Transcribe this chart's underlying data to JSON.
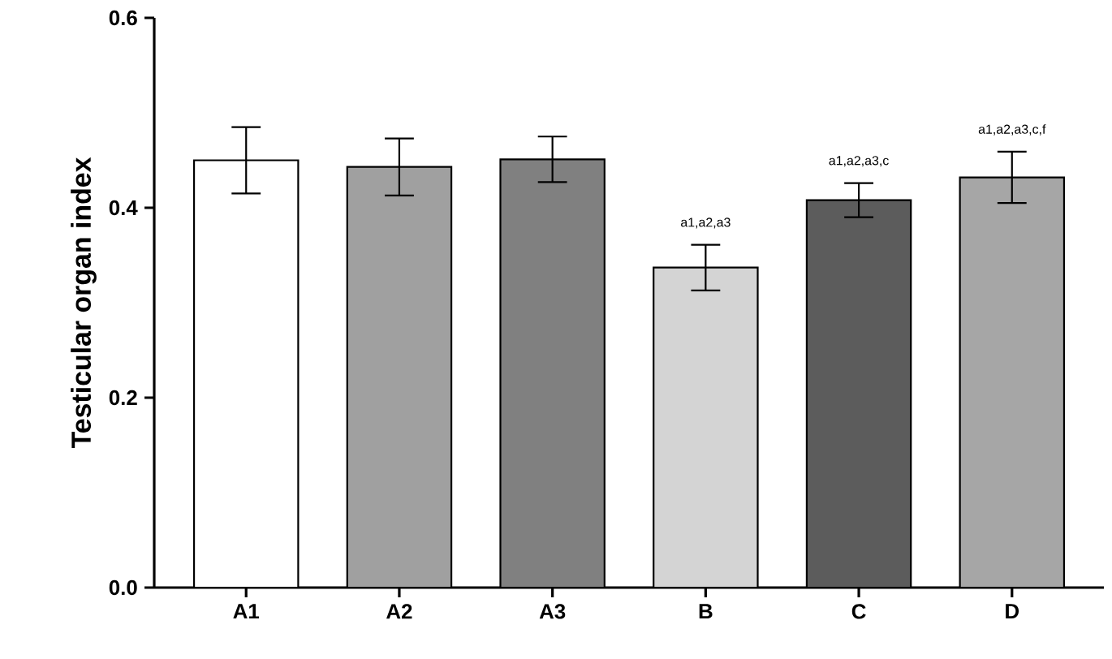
{
  "chart_data": {
    "type": "bar",
    "ylabel": "Testicular organ index",
    "categories": [
      "A1",
      "A2",
      "A3",
      "B",
      "C",
      "D"
    ],
    "values": [
      0.45,
      0.443,
      0.451,
      0.337,
      0.408,
      0.432
    ],
    "errors": [
      0.035,
      0.03,
      0.024,
      0.024,
      0.018,
      0.027
    ],
    "colors": [
      "#ffffff",
      "#a0a0a0",
      "#808080",
      "#d4d4d4",
      "#5c5c5c",
      "#a6a6a6"
    ],
    "ylim": [
      0,
      0.6
    ],
    "yticks": [
      {
        "value": 0,
        "label": "0.0"
      },
      {
        "value": 0.2,
        "label": "0.2"
      },
      {
        "value": 0.4,
        "label": "0.4"
      },
      {
        "value": 0.6,
        "label": "0.6"
      }
    ],
    "annotations": [
      "a1,a2,a3",
      "a1,a2,a3,c",
      "a1,a2,a3,c,f"
    ],
    "grid": false
  }
}
